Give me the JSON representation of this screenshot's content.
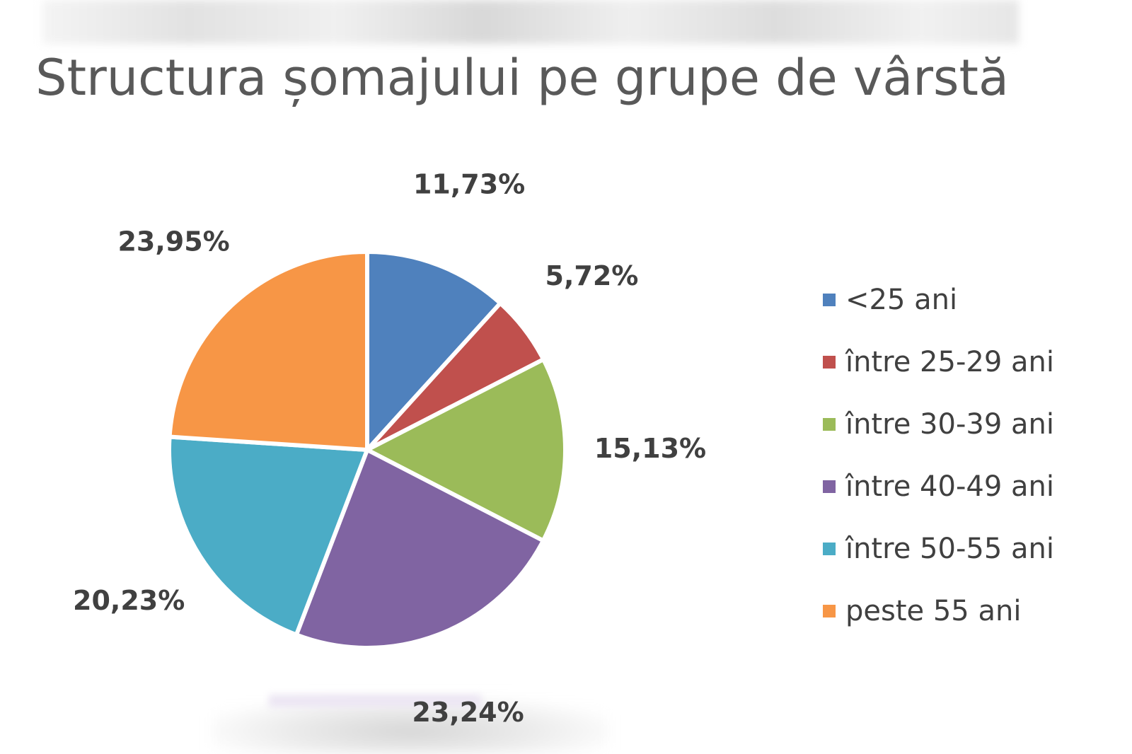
{
  "chart_data": {
    "type": "pie",
    "title": "Structura șomajului pe grupe de vârstă",
    "legend_position": "right",
    "slices": [
      {
        "label": "<25 ani",
        "value": 11.73,
        "value_label": "11,73%",
        "color": "#4F81BD"
      },
      {
        "label": "între 25-29 ani",
        "value": 5.72,
        "value_label": "5,72%",
        "color": "#C0504D"
      },
      {
        "label": "între 30-39 ani",
        "value": 15.13,
        "value_label": "15,13%",
        "color": "#9BBB59"
      },
      {
        "label": "între 40-49 ani",
        "value": 23.24,
        "value_label": "23,24%",
        "color": "#8064A2"
      },
      {
        "label": "între 50-55 ani",
        "value": 20.23,
        "value_label": "20,23%",
        "color": "#4BACC6"
      },
      {
        "label": "peste 55 ani",
        "value": 23.95,
        "value_label": "23,95%",
        "color": "#F79646"
      }
    ]
  }
}
